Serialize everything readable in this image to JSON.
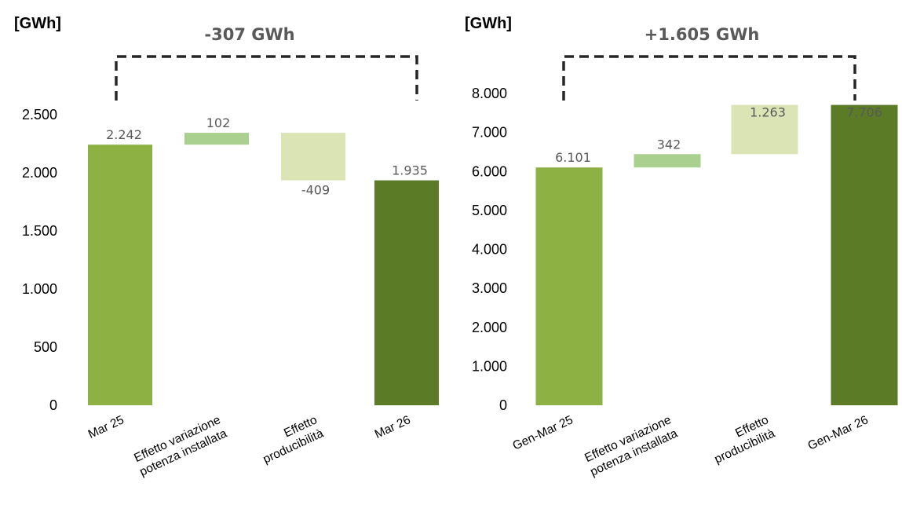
{
  "chart_data": [
    {
      "type": "bar",
      "unit_label": "[GWh]",
      "title": "-307 GWh",
      "categories": [
        [
          "Mar 25"
        ],
        [
          "Effetto variazione",
          "potenza installata"
        ],
        [
          "Effetto",
          "producibilità"
        ],
        [
          "Mar 26"
        ]
      ],
      "bars": [
        {
          "base": 0,
          "top": 2242,
          "label": "2.242",
          "label_pos": "above",
          "color": "#8db243"
        },
        {
          "base": 2242,
          "top": 2344,
          "label": "102",
          "label_pos": "above",
          "color": "#a9d08e"
        },
        {
          "base": 1935,
          "top": 2344,
          "label": "-409",
          "label_pos": "below",
          "color": "#dbe4b5"
        },
        {
          "base": 0,
          "top": 1935,
          "label": "1.935",
          "label_pos": "above",
          "color": "#5b7b27"
        }
      ],
      "ylim": [
        0,
        2500
      ],
      "yticks": [
        0,
        500,
        1000,
        1500,
        2000,
        2500
      ],
      "ytick_labels": [
        "0",
        "500",
        "1.000",
        "1.500",
        "2.000",
        "2.500"
      ]
    },
    {
      "type": "bar",
      "unit_label": "[GWh]",
      "title": "+1.605 GWh",
      "categories": [
        [
          "Gen-Mar 25"
        ],
        [
          "Effetto variazione",
          "potenza installata"
        ],
        [
          "Effetto",
          "producibilità"
        ],
        [
          "Gen-Mar 26"
        ]
      ],
      "bars": [
        {
          "base": 0,
          "top": 6101,
          "label": "6.101",
          "label_pos": "above",
          "color": "#8db243"
        },
        {
          "base": 6101,
          "top": 6443,
          "label": "342",
          "label_pos": "above",
          "color": "#a9d08e"
        },
        {
          "base": 6443,
          "top": 7706,
          "label": "1.263",
          "label_pos": "inside-top",
          "color": "#dbe4b5"
        },
        {
          "base": 0,
          "top": 7706,
          "label": "7.706",
          "label_pos": "inside-top",
          "color": "#5b7b27"
        }
      ],
      "ylim": [
        0,
        8000
      ],
      "yticks": [
        0,
        1000,
        2000,
        3000,
        4000,
        5000,
        6000,
        7000,
        8000
      ],
      "ytick_labels": [
        "0",
        "1.000",
        "2.000",
        "3.000",
        "4.000",
        "5.000",
        "6.000",
        "7.000",
        "8.000"
      ]
    }
  ]
}
